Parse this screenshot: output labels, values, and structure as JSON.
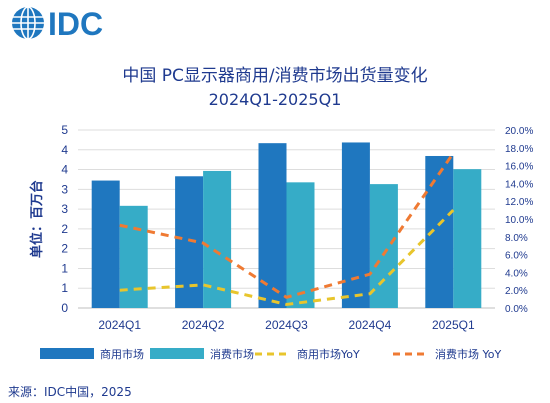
{
  "logo": {
    "text": "IDC"
  },
  "header": {
    "title": "中国 PC显示器商用/消费市场出货量变化",
    "subtitle": "2024Q1-2025Q1"
  },
  "colors": {
    "text": "#1f3a8f",
    "commercial": "#1f77bf",
    "consumer": "#36acc7",
    "commercial_yoy": "#e8c52c",
    "consumer_yoy": "#ef7a33",
    "grid": "#dddddd"
  },
  "chart_data": {
    "type": "bar",
    "categories": [
      "2024Q1",
      "2024Q2",
      "2024Q3",
      "2024Q4",
      "2025Q1"
    ],
    "ylabel": "单位：百万台",
    "ylim": [
      0,
      5
    ],
    "yticks": [
      "0",
      "1",
      "1",
      "2",
      "2",
      "3",
      "3",
      "4",
      "4",
      "5"
    ],
    "y2lim": [
      0,
      20
    ],
    "y2ticks": [
      "0.0%",
      "2.0%",
      "4.0%",
      "6.0%",
      "8.0%",
      "10.0%",
      "12.0%",
      "14.0%",
      "16.0%",
      "18.0%",
      "20.0%"
    ],
    "grid": true,
    "legend_position": "bottom",
    "series": [
      {
        "name": "商用市场",
        "kind": "bar",
        "axis": "left",
        "values": [
          3.58,
          3.7,
          4.63,
          4.65,
          4.27
        ]
      },
      {
        "name": "消费市场",
        "kind": "bar",
        "axis": "left",
        "values": [
          2.87,
          3.85,
          3.53,
          3.48,
          3.9
        ]
      },
      {
        "name": "商用市场YoY",
        "kind": "line",
        "axis": "right",
        "values": [
          2.0,
          2.6,
          0.4,
          1.6,
          11.0
        ]
      },
      {
        "name": "消费市场 YoY",
        "kind": "line",
        "axis": "right",
        "values": [
          9.3,
          7.3,
          1.2,
          3.8,
          17.4
        ]
      }
    ]
  },
  "footer": {
    "source": "来源：IDC中国，2025"
  }
}
